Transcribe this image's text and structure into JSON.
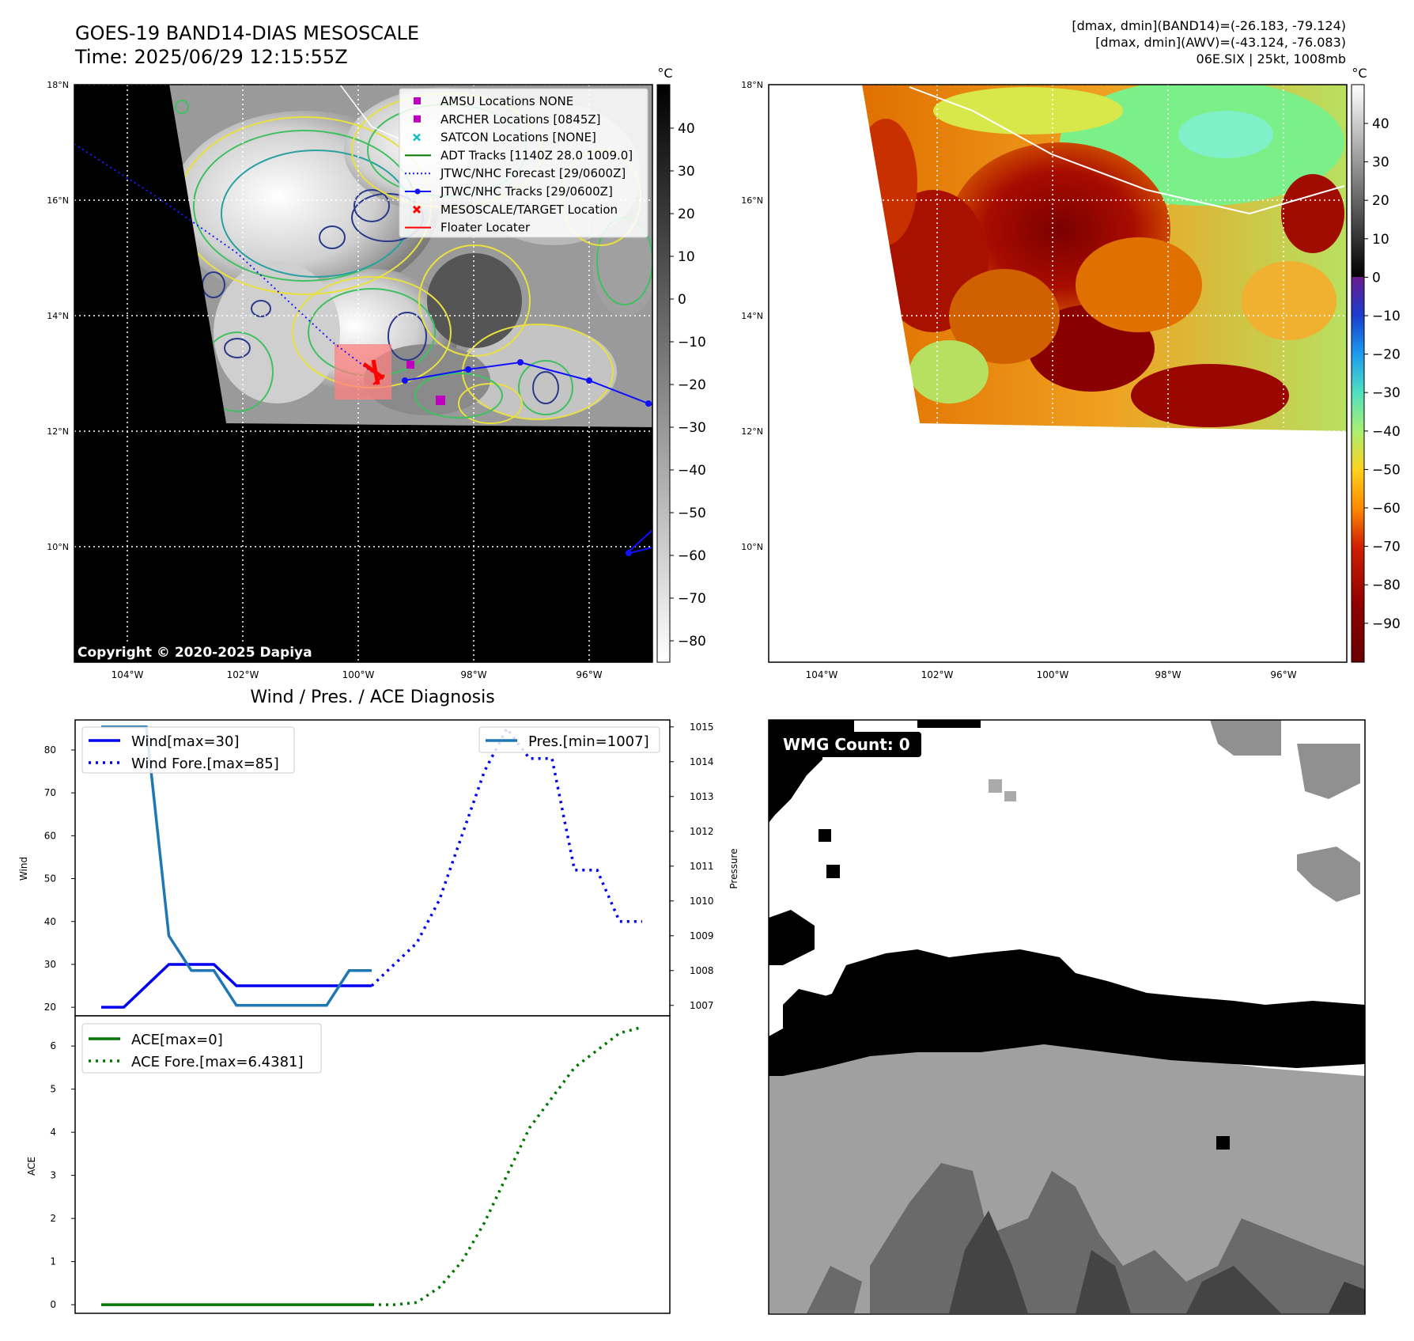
{
  "header": {
    "title_line1": "GOES-19 BAND14-DIAS MESOSCALE",
    "title_line2": "Time: 2025/06/29 12:15:55Z",
    "stats_line1": "[dmax, dmin](BAND14)=(-26.183, -79.124)",
    "stats_line2": "[dmax, dmin](AWV)=(-43.124, -76.083)",
    "stats_line3": "06E.SIX | 25kt, 1008mb"
  },
  "copyright": "Copyright © 2020-2025 Dapiya",
  "colors": {
    "wind": "#0000ee",
    "pres": "#1f77b4",
    "ace": "#007700",
    "track": "#0000ff",
    "target": "#ff0000"
  },
  "map_ir": {
    "unit": "°C",
    "lat_labels": [
      "18°N",
      "16°N",
      "14°N",
      "12°N",
      "10°N"
    ],
    "lon_labels": [
      "104°W",
      "102°W",
      "100°W",
      "98°W",
      "96°W"
    ],
    "colorbar_ticks": [
      "40",
      "30",
      "20",
      "10",
      "0",
      "−10",
      "−20",
      "−30",
      "−40",
      "−50",
      "−60",
      "−70",
      "−80"
    ],
    "legend": [
      {
        "icon": "square-marker",
        "label": "AMSU Locations NONE"
      },
      {
        "icon": "square-marker",
        "label": "ARCHER Locations [0845Z]"
      },
      {
        "icon": "cross-marker",
        "label": "SATCON Locations [NONE]"
      },
      {
        "icon": "solid-line",
        "label": "ADT Tracks [1140Z 28.0 1009.0]"
      },
      {
        "icon": "dotted-line",
        "label": "JTWC/NHC Forecast [29/0600Z]"
      },
      {
        "icon": "line-dot",
        "label": "JTWC/NHC Tracks [29/0600Z]"
      },
      {
        "icon": "x-marker",
        "label": "MESOSCALE/TARGET Location"
      },
      {
        "icon": "red-line",
        "label": "Floater Locater"
      }
    ]
  },
  "map_awv": {
    "unit": "°C",
    "lat_labels": [
      "18°N",
      "16°N",
      "14°N",
      "12°N",
      "10°N"
    ],
    "lon_labels": [
      "104°W",
      "102°W",
      "100°W",
      "98°W",
      "96°W"
    ],
    "colorbar_ticks": [
      "40",
      "30",
      "20",
      "10",
      "0",
      "−10",
      "−20",
      "−30",
      "−40",
      "−50",
      "−60",
      "−70",
      "−80",
      "−90"
    ]
  },
  "diagnosis": {
    "title": "Wind / Pres. / ACE Diagnosis",
    "wind_ylabel": "Wind",
    "pres_ylabel": "Pressure",
    "ace_ylabel": "ACE",
    "legend_wind": "Wind[max=30]",
    "legend_wind_fore": "Wind Fore.[max=85]",
    "legend_pres": "Pres.[min=1007]",
    "legend_ace": "ACE[max=0]",
    "legend_ace_fore": "ACE Fore.[max=6.4381]"
  },
  "wmg": {
    "label": "WMG Count: 0"
  },
  "chart_data": [
    {
      "type": "line",
      "panel": "wind-pressure",
      "x": [
        0,
        1,
        2,
        3,
        4,
        5,
        6,
        7,
        8,
        9,
        10,
        11,
        12
      ],
      "series": [
        {
          "name": "Wind[max=30]",
          "axis": "left",
          "style": "solid",
          "x": [
            0,
            1,
            2,
            3,
            4,
            5,
            6,
            7,
            8,
            9,
            10,
            11,
            12
          ],
          "values": [
            20,
            20,
            25,
            30,
            30,
            30,
            25,
            25,
            25,
            25,
            25,
            25,
            25
          ]
        },
        {
          "name": "Wind Fore.[max=85]",
          "axis": "left",
          "style": "dotted",
          "x": [
            12,
            13,
            14,
            15,
            16,
            17,
            18,
            19,
            20,
            21,
            22,
            23,
            24
          ],
          "values": [
            25,
            30,
            35,
            45,
            60,
            75,
            85,
            78,
            78,
            52,
            52,
            40,
            40
          ]
        },
        {
          "name": "Pres.[min=1007]",
          "axis": "right",
          "style": "solid",
          "x": [
            0,
            1,
            2,
            3,
            4,
            5,
            6,
            7,
            8,
            9,
            10,
            11,
            12
          ],
          "values": [
            1015,
            1015,
            1015,
            1009,
            1008,
            1008,
            1007,
            1007,
            1007,
            1007,
            1007,
            1008,
            1008
          ]
        }
      ],
      "ylim_left": [
        18,
        87
      ],
      "ylim_right": [
        1006.7,
        1015.2
      ],
      "yticks_left": [
        20,
        30,
        40,
        50,
        60,
        70,
        80
      ],
      "yticks_right": [
        1007,
        1008,
        1009,
        1010,
        1011,
        1012,
        1013,
        1014,
        1015
      ]
    },
    {
      "type": "line",
      "panel": "ace",
      "series": [
        {
          "name": "ACE[max=0]",
          "style": "solid",
          "x": [
            0,
            12
          ],
          "values": [
            0,
            0
          ]
        },
        {
          "name": "ACE Fore.[max=6.4381]",
          "style": "dotted",
          "x": [
            12,
            13,
            14,
            15,
            16,
            17,
            18,
            19,
            20,
            21,
            22,
            23,
            24
          ],
          "values": [
            0,
            0,
            0.05,
            0.4,
            1.0,
            1.9,
            3.0,
            4.1,
            4.8,
            5.5,
            5.9,
            6.3,
            6.4381
          ]
        }
      ],
      "ylim": [
        -0.2,
        6.7
      ],
      "yticks": [
        0,
        1,
        2,
        3,
        4,
        5,
        6
      ]
    }
  ]
}
